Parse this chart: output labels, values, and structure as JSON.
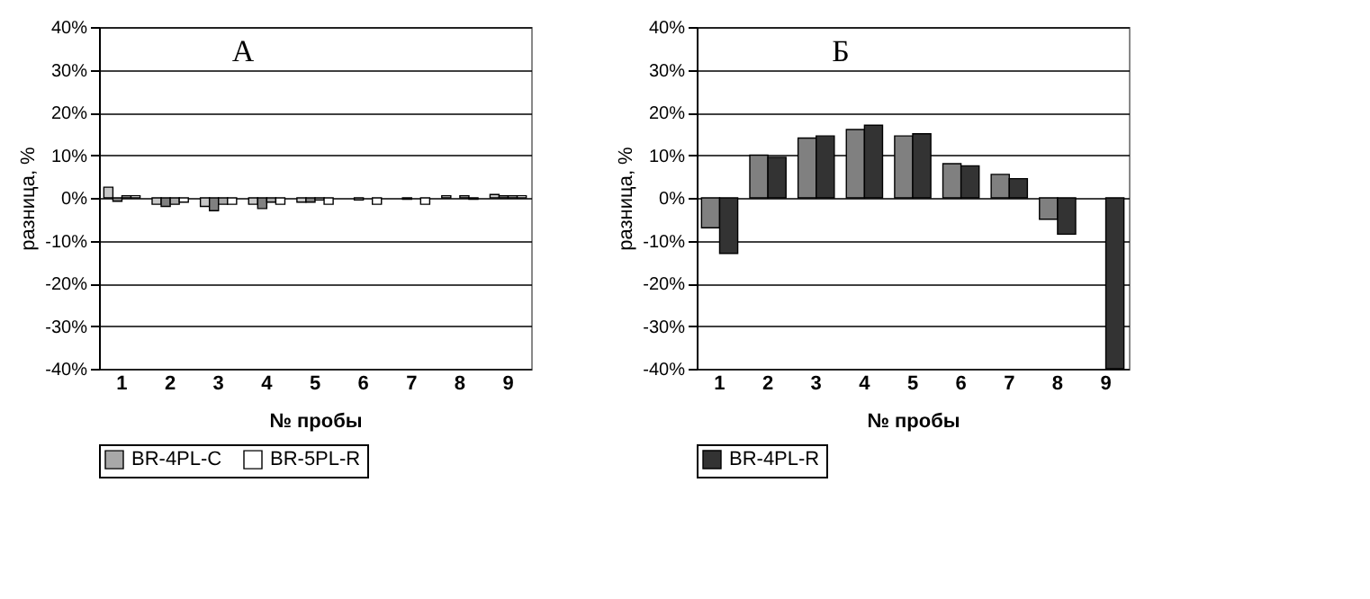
{
  "chart_data": [
    {
      "type": "bar",
      "title": "А",
      "xlabel": "№ пробы",
      "ylabel": "разница, %",
      "categories": [
        "1",
        "2",
        "3",
        "4",
        "5",
        "6",
        "7",
        "8",
        "9"
      ],
      "series": [
        {
          "color": "#c8c8c8",
          "values": [
            2.5,
            -1.5,
            -2,
            -1.5,
            -1,
            null,
            null,
            0.5,
            0.8
          ]
        },
        {
          "color": "#808080",
          "values": [
            -0.8,
            -2,
            -3,
            -2.5,
            -1,
            -0.5,
            -0.3,
            null,
            0.5
          ]
        },
        {
          "name": "BR-4PL-C",
          "color": "#a8a8a8",
          "values": [
            0.5,
            -1.5,
            -1.5,
            -1,
            -0.5,
            null,
            null,
            0.5,
            0.5
          ]
        },
        {
          "name": "BR-5PL-R",
          "color": "#ffffff",
          "values": [
            0.5,
            -1,
            -1.5,
            -1.5,
            -1.5,
            -1.5,
            -1.5,
            -0.3,
            0.5
          ]
        }
      ],
      "ylim": [
        -40,
        40
      ],
      "yticks": [
        {
          "value": -40,
          "label": "-40%"
        },
        {
          "value": -30,
          "label": "-30%"
        },
        {
          "value": -20,
          "label": "-20%"
        },
        {
          "value": -10,
          "label": "-10%"
        },
        {
          "value": 0,
          "label": "0%"
        },
        {
          "value": 10,
          "label": "10%"
        },
        {
          "value": 20,
          "label": "20%"
        },
        {
          "value": 30,
          "label": "30%"
        },
        {
          "value": 40,
          "label": "40%"
        }
      ],
      "grid": "y",
      "legend": "bottom"
    },
    {
      "type": "bar",
      "title": "Б",
      "xlabel": "№ пробы",
      "ylabel": "разница, %",
      "categories": [
        "1",
        "2",
        "3",
        "4",
        "5",
        "6",
        "7",
        "8",
        "9"
      ],
      "series": [
        {
          "color": "#808080",
          "values": [
            -7,
            10,
            14,
            16,
            14.5,
            8,
            5.5,
            -5,
            null
          ]
        },
        {
          "name": "BR-4PL-R",
          "color": "#333333",
          "values": [
            -13,
            9.5,
            14.5,
            17,
            15,
            7.5,
            4.5,
            -8.5,
            -40
          ]
        }
      ],
      "ylim": [
        -40,
        40
      ],
      "yticks": [
        {
          "value": -40,
          "label": "-40%"
        },
        {
          "value": -30,
          "label": "-30%"
        },
        {
          "value": -20,
          "label": "-20%"
        },
        {
          "value": -10,
          "label": "-10%"
        },
        {
          "value": 0,
          "label": "0%"
        },
        {
          "value": 10,
          "label": "10%"
        },
        {
          "value": 20,
          "label": "20%"
        },
        {
          "value": 30,
          "label": "30%"
        },
        {
          "value": 40,
          "label": "40%"
        }
      ],
      "grid": "y",
      "legend": "bottom"
    }
  ]
}
